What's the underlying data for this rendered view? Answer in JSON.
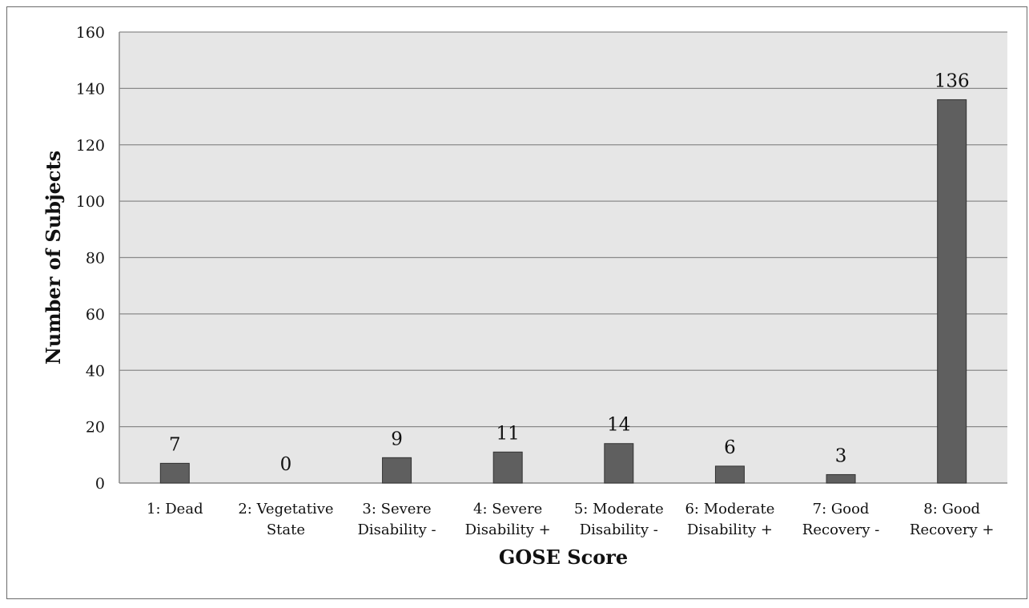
{
  "chart_data": {
    "type": "bar",
    "title": "",
    "xlabel": "GOSE Score",
    "ylabel": "Number of Subjects",
    "ylim": [
      0,
      160
    ],
    "yticks": [
      0,
      20,
      40,
      60,
      80,
      100,
      120,
      140,
      160
    ],
    "grid": true,
    "legend": "none",
    "categories": [
      [
        "1: Dead"
      ],
      [
        "2: Vegetative",
        "State"
      ],
      [
        "3: Severe",
        "Disability -"
      ],
      [
        "4: Severe",
        "Disability +"
      ],
      [
        "5: Moderate",
        "Disability -"
      ],
      [
        "6: Moderate",
        "Disability +"
      ],
      [
        "7: Good",
        "Recovery -"
      ],
      [
        "8: Good",
        "Recovery +"
      ]
    ],
    "values": [
      7,
      0,
      9,
      11,
      14,
      6,
      3,
      136
    ],
    "data_labels": [
      "7",
      "0",
      "9",
      "11",
      "14",
      "6",
      "3",
      "136"
    ],
    "colors": {
      "bar_fill": "#5f5f5f",
      "bar_stroke": "#333333",
      "plot_background": "#e6e6e6",
      "gridline": "#8a8a8a"
    }
  }
}
